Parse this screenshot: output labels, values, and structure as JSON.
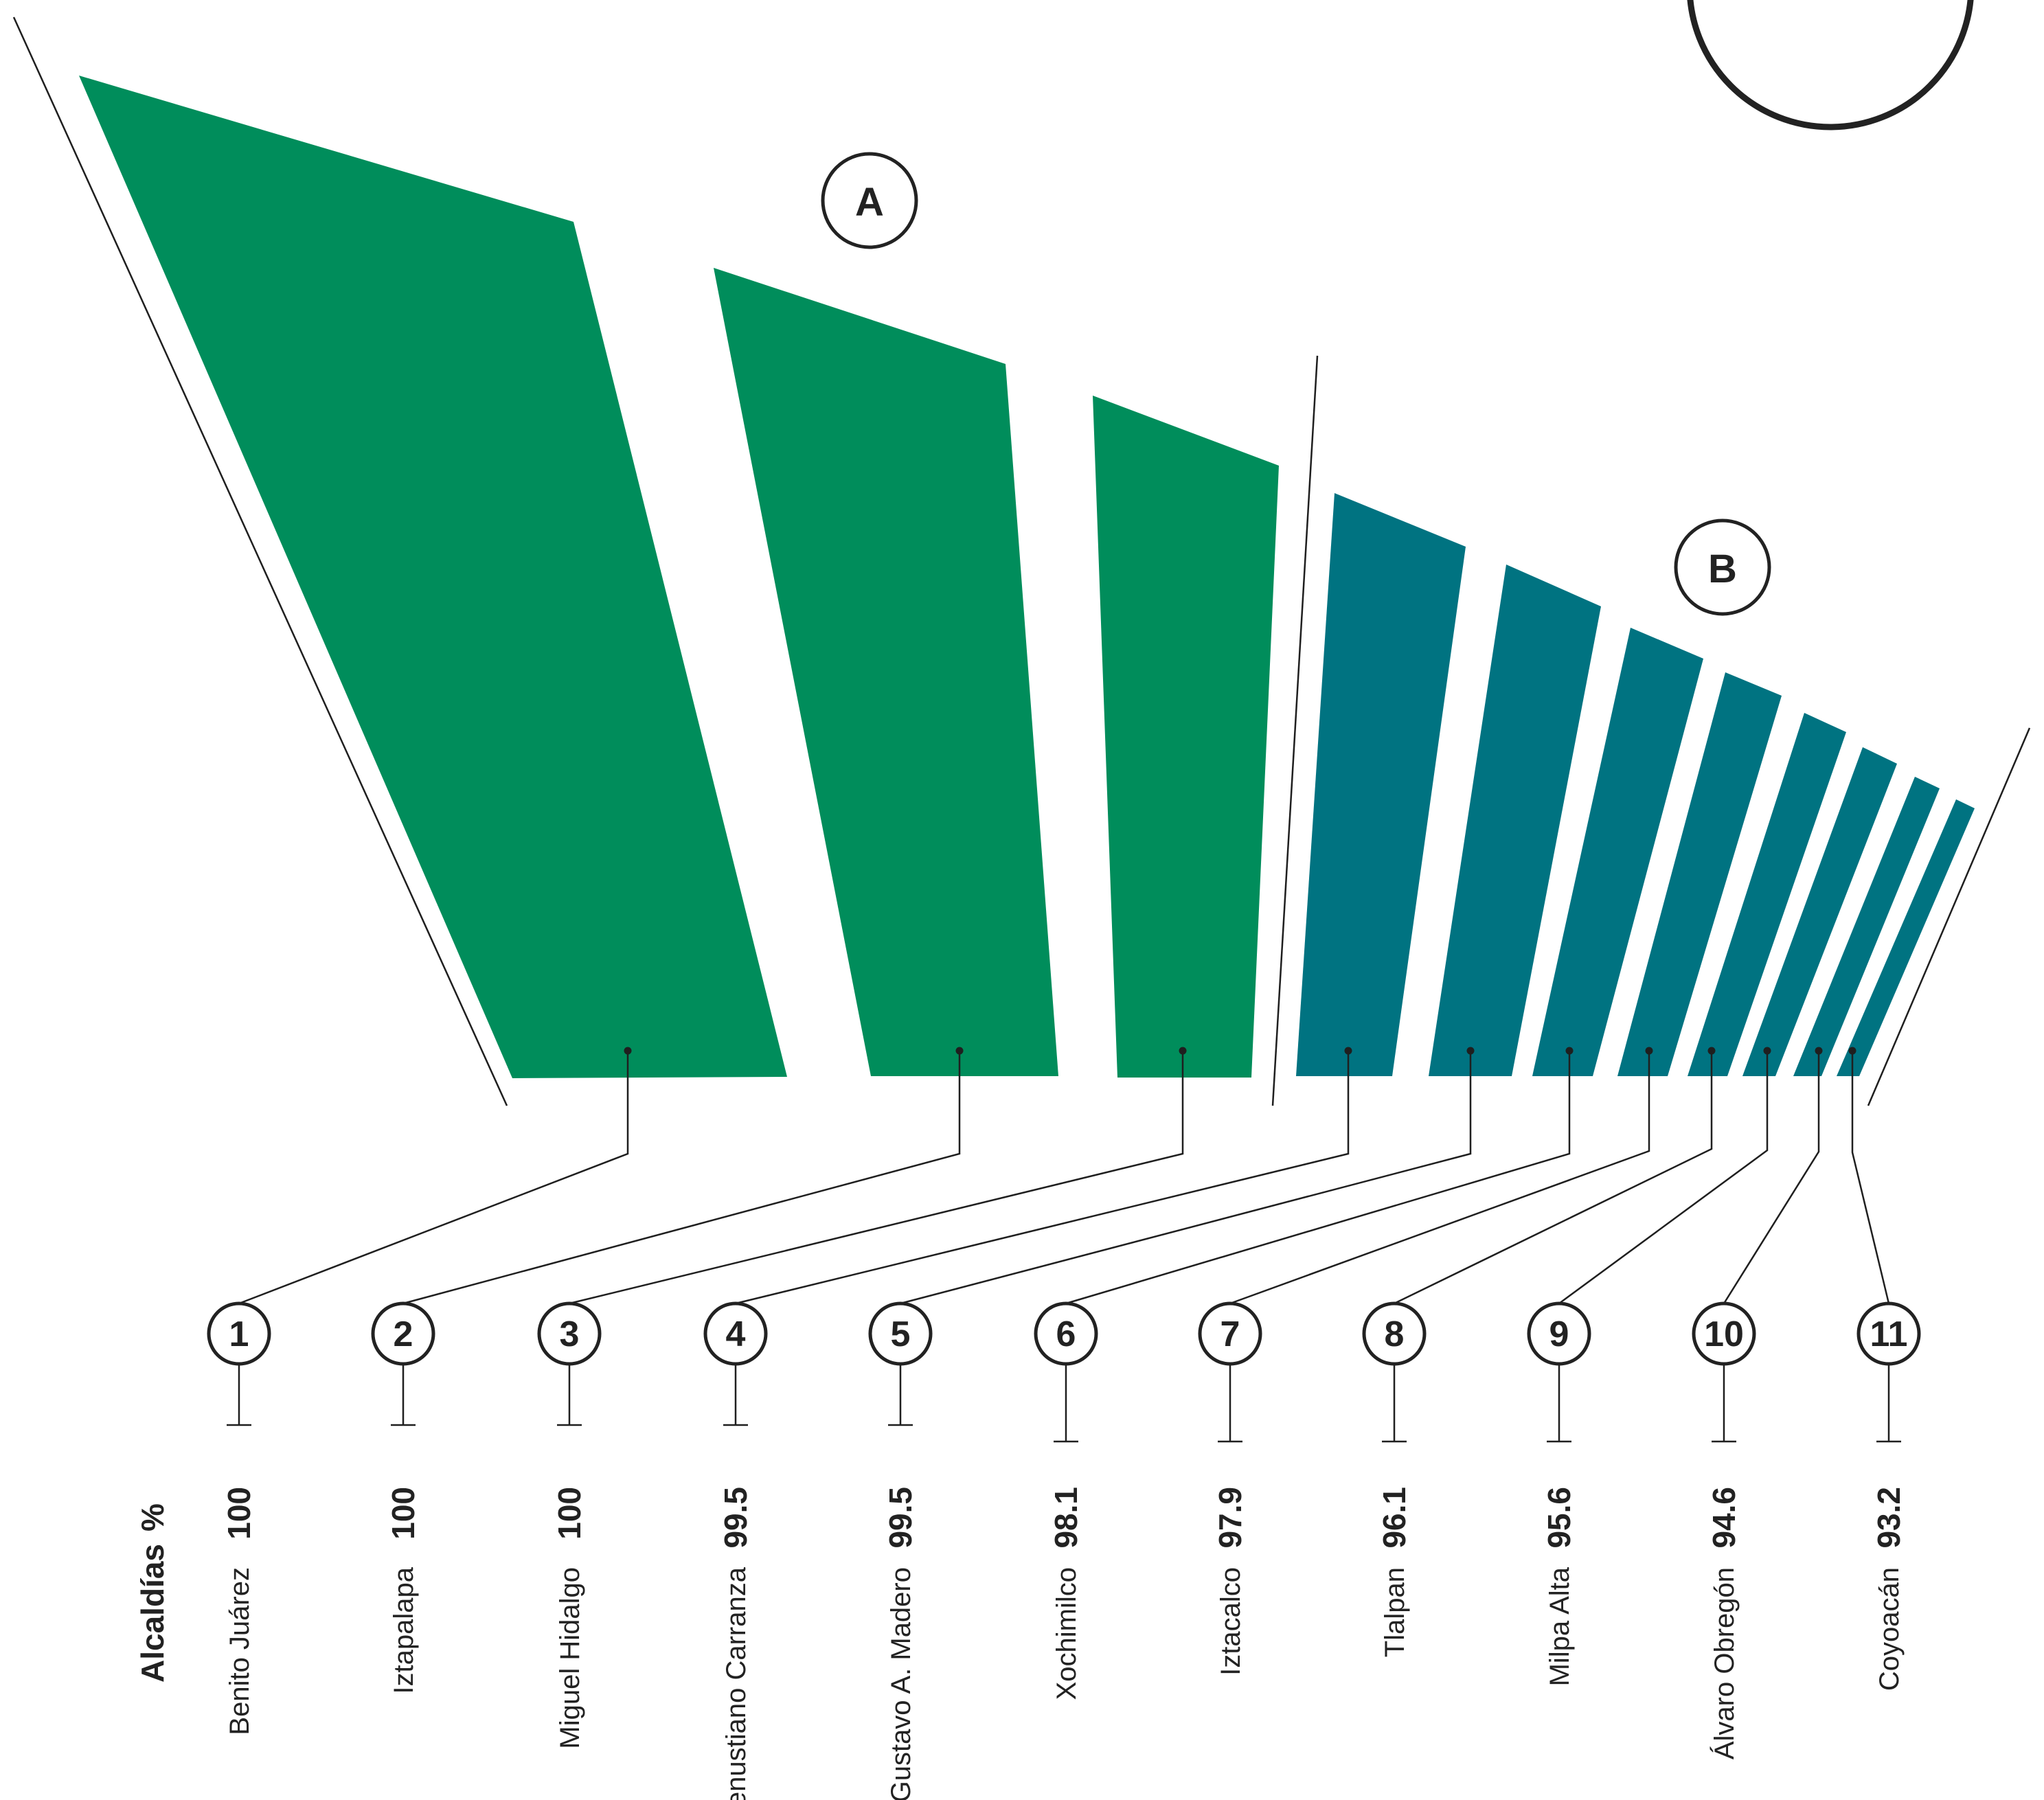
{
  "chart_data": {
    "type": "bar",
    "header": {
      "category_label": "Alcaldías",
      "value_label": "%"
    },
    "groups": [
      {
        "label": "A",
        "color": "#008d5b"
      },
      {
        "label": "B",
        "color": "#007381"
      }
    ],
    "items": [
      {
        "rank": "1",
        "name": "Benito Juárez",
        "value": 100,
        "value_label": "100",
        "group": "A"
      },
      {
        "rank": "2",
        "name": "Iztapalapa",
        "value": 100,
        "value_label": "100",
        "group": "A"
      },
      {
        "rank": "3",
        "name": "Miguel Hidalgo",
        "value": 100,
        "value_label": "100",
        "group": "A"
      },
      {
        "rank": "4",
        "name": "Venustiano Carranza",
        "value": 99.5,
        "value_label": "99.5",
        "group": "B"
      },
      {
        "rank": "5",
        "name": "Gustavo A. Madero",
        "value": 99.5,
        "value_label": "99.5",
        "group": "B"
      },
      {
        "rank": "6",
        "name": "Xochimilco",
        "value": 98.1,
        "value_label": "98.1",
        "group": "B"
      },
      {
        "rank": "7",
        "name": "Iztacalco",
        "value": 97.9,
        "value_label": "97.9",
        "group": "B"
      },
      {
        "rank": "8",
        "name": "Tlalpan",
        "value": 96.1,
        "value_label": "96.1",
        "group": "B"
      },
      {
        "rank": "9",
        "name": "Milpa Alta",
        "value": 95.6,
        "value_label": "95.6",
        "group": "B"
      },
      {
        "rank": "10",
        "name": "Álvaro Obregón",
        "value": 94.6,
        "value_label": "94.6",
        "group": "B"
      },
      {
        "rank": "11",
        "name": "Coyoacán",
        "value": 93.2,
        "value_label": "93.2",
        "group": "B"
      }
    ]
  }
}
